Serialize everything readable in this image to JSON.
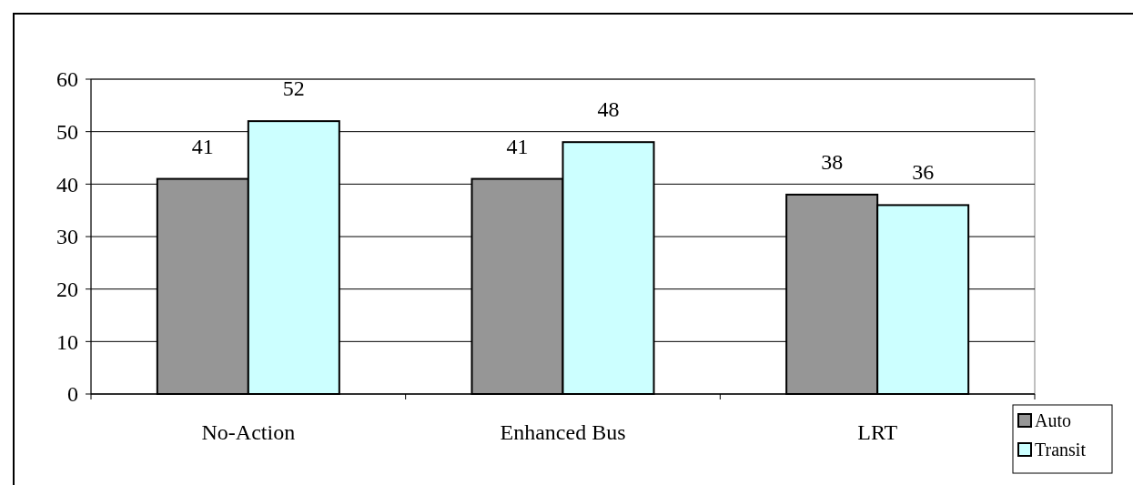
{
  "chart_data": {
    "type": "bar",
    "categories": [
      "No-Action",
      "Enhanced Bus",
      "LRT"
    ],
    "series": [
      {
        "name": "Auto",
        "color": "#969696",
        "values": [
          41,
          41,
          38
        ]
      },
      {
        "name": "Transit",
        "color": "#ccffff",
        "values": [
          52,
          48,
          36
        ]
      }
    ],
    "ylim": [
      0,
      60
    ],
    "yticks": [
      0,
      10,
      20,
      30,
      40,
      50,
      60
    ],
    "grid": "y",
    "legend": "right",
    "data_labels": true
  }
}
